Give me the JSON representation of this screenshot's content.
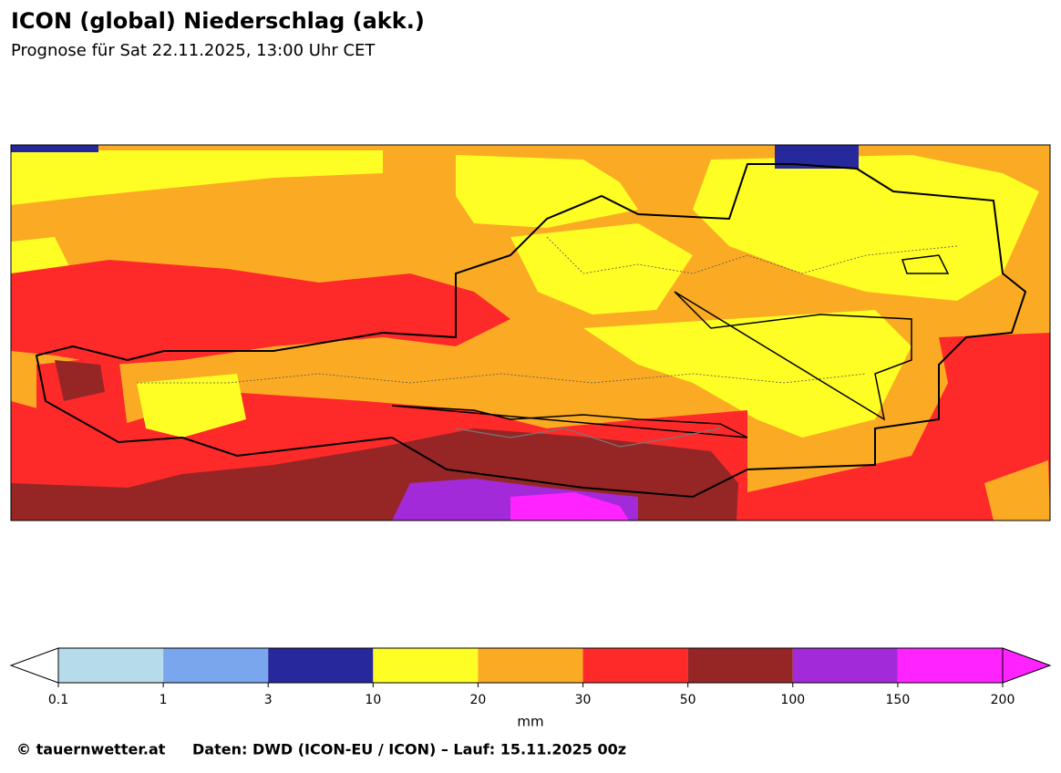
{
  "header": {
    "title": "ICON (global) Niederschlag (akk.)",
    "subtitle": "Prognose für Sat 22.11.2025, 13:00 Uhr CET"
  },
  "colorbar": {
    "ticks": [
      0.1,
      1,
      3,
      10,
      20,
      30,
      50,
      100,
      150,
      200
    ],
    "colors": [
      "#b6dceb",
      "#7aa6ee",
      "#27289c",
      "#fefe25",
      "#fbab23",
      "#fe2a2a",
      "#962626",
      "#a22ad8",
      "#ff23ff"
    ],
    "under_color": "#ffffff",
    "over_color": "#ff23ff",
    "label": "mm"
  },
  "footer": {
    "copyright": "© tauernwetter.at",
    "source": "Daten: DWD (ICON-EU / ICON) – Lauf: 15.11.2025 00z"
  }
}
